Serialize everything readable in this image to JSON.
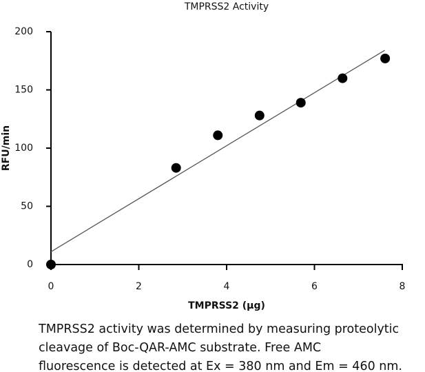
{
  "chart_data": {
    "type": "scatter",
    "title": "TMPRSS2 Activity",
    "x_label": "TMPRSS2 (µg)",
    "y_label": "RFU/min",
    "x": [
      0,
      2.85,
      3.8,
      4.75,
      5.69,
      6.64,
      7.61
    ],
    "values": [
      0,
      83,
      111,
      128,
      139,
      160,
      177
    ],
    "color": "#000000",
    "fit": {
      "x": [
        0,
        7.6
      ],
      "values": [
        11,
        184
      ],
      "color": "#555555"
    },
    "xlim": [
      0,
      8
    ],
    "xticks": [
      0,
      2,
      4,
      6,
      8
    ],
    "ylim": [
      0,
      200
    ],
    "yticks": [
      0,
      50,
      100,
      150,
      200
    ],
    "caption": [
      "TMPRSS2 activity was determined by measuring proteolytic",
      "cleavage of Boc-QAR-AMC substrate. Free AMC",
      "fluorescence is detected at Ex = 380 nm and Em = 460 nm."
    ]
  }
}
